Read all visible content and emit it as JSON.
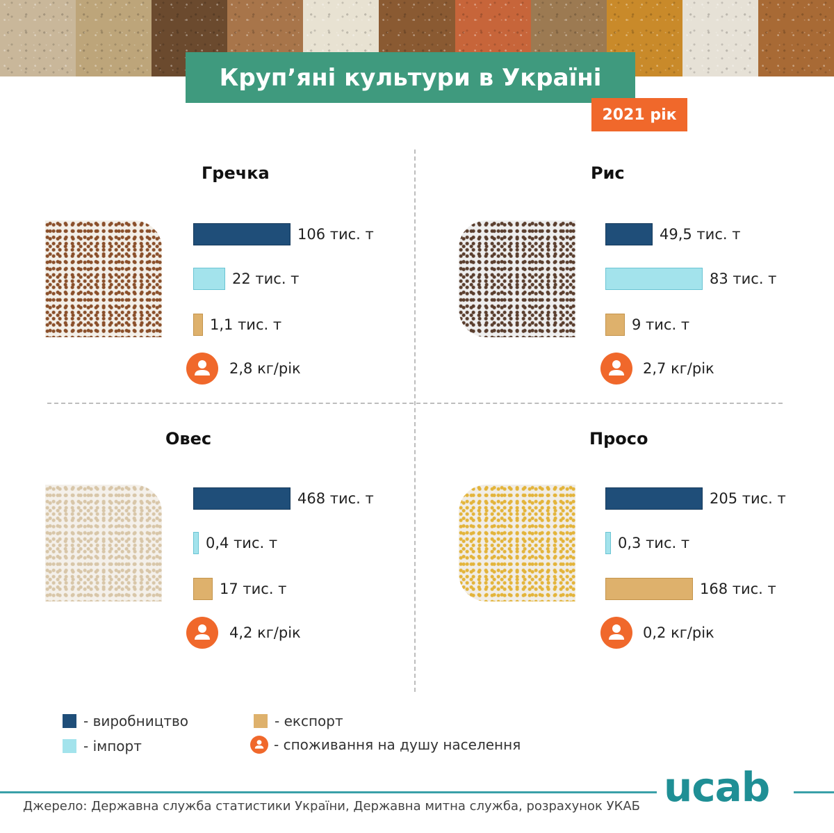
{
  "header": {
    "title": "Круп’яні культури в Україні",
    "year": "2021 рік",
    "grain_tiles": [
      "#c9b79a",
      "#bda57a",
      "#6b4a2e",
      "#a8754a",
      "#e8e2d2",
      "#8a5a32",
      "#c7653a",
      "#9c7a52",
      "#c98a2a",
      "#e6e1d6",
      "#a86a35"
    ]
  },
  "colors": {
    "production": "#1f4e79",
    "import": "#a3e3ec",
    "export": "#deb16c",
    "consumption": "#f0682b",
    "title_bg": "#3f9a7e"
  },
  "chart_data": {
    "type": "bar",
    "unit": "тис. т",
    "series_order": [
      "production",
      "import",
      "export"
    ],
    "categories": [
      "Гречка",
      "Рис",
      "Овес",
      "Просо"
    ],
    "crops": [
      {
        "name": "Гречка",
        "production": 106,
        "production_label": "106 тис. т",
        "import": 22,
        "import_label": "22 тис. т",
        "export": 1.1,
        "export_label": "1,1 тис. т",
        "consumption_label": "2,8 кг/рік",
        "photo_colors": [
          "#f3efe8",
          "#8a4f2a"
        ]
      },
      {
        "name": "Рис",
        "production": 49.5,
        "production_label": "49,5 тис. т",
        "import": 83,
        "import_label": "83 тис. т",
        "export": 9,
        "export_label": "9 тис. т",
        "consumption_label": "2,7 кг/рік",
        "photo_colors": [
          "#eeeeee",
          "#5a3e2e"
        ]
      },
      {
        "name": "Овес",
        "production": 468,
        "production_label": "468 тис. т",
        "import": 0.4,
        "import_label": "0,4 тис. т",
        "export": 17,
        "export_label": "17 тис. т",
        "consumption_label": "4,2 кг/рік",
        "photo_colors": [
          "#f4f0ea",
          "#d8c6a8"
        ]
      },
      {
        "name": "Просо",
        "production": 205,
        "production_label": "205 тис. т",
        "import": 0.3,
        "import_label": "0,3 тис. т",
        "export": 168,
        "export_label": "168 тис. т",
        "consumption_label": "0,2 кг/рік",
        "photo_colors": [
          "#f1ede6",
          "#e3b43a"
        ]
      }
    ]
  },
  "legend": {
    "production": "- виробництво",
    "import": "- імпорт",
    "export": "- експорт",
    "consumption": "- споживання на душу населення"
  },
  "footer": {
    "logo": "ucab",
    "source": "Джерело: Державна служба статистики України, Державна митна служба, розрахунок УКАБ"
  }
}
